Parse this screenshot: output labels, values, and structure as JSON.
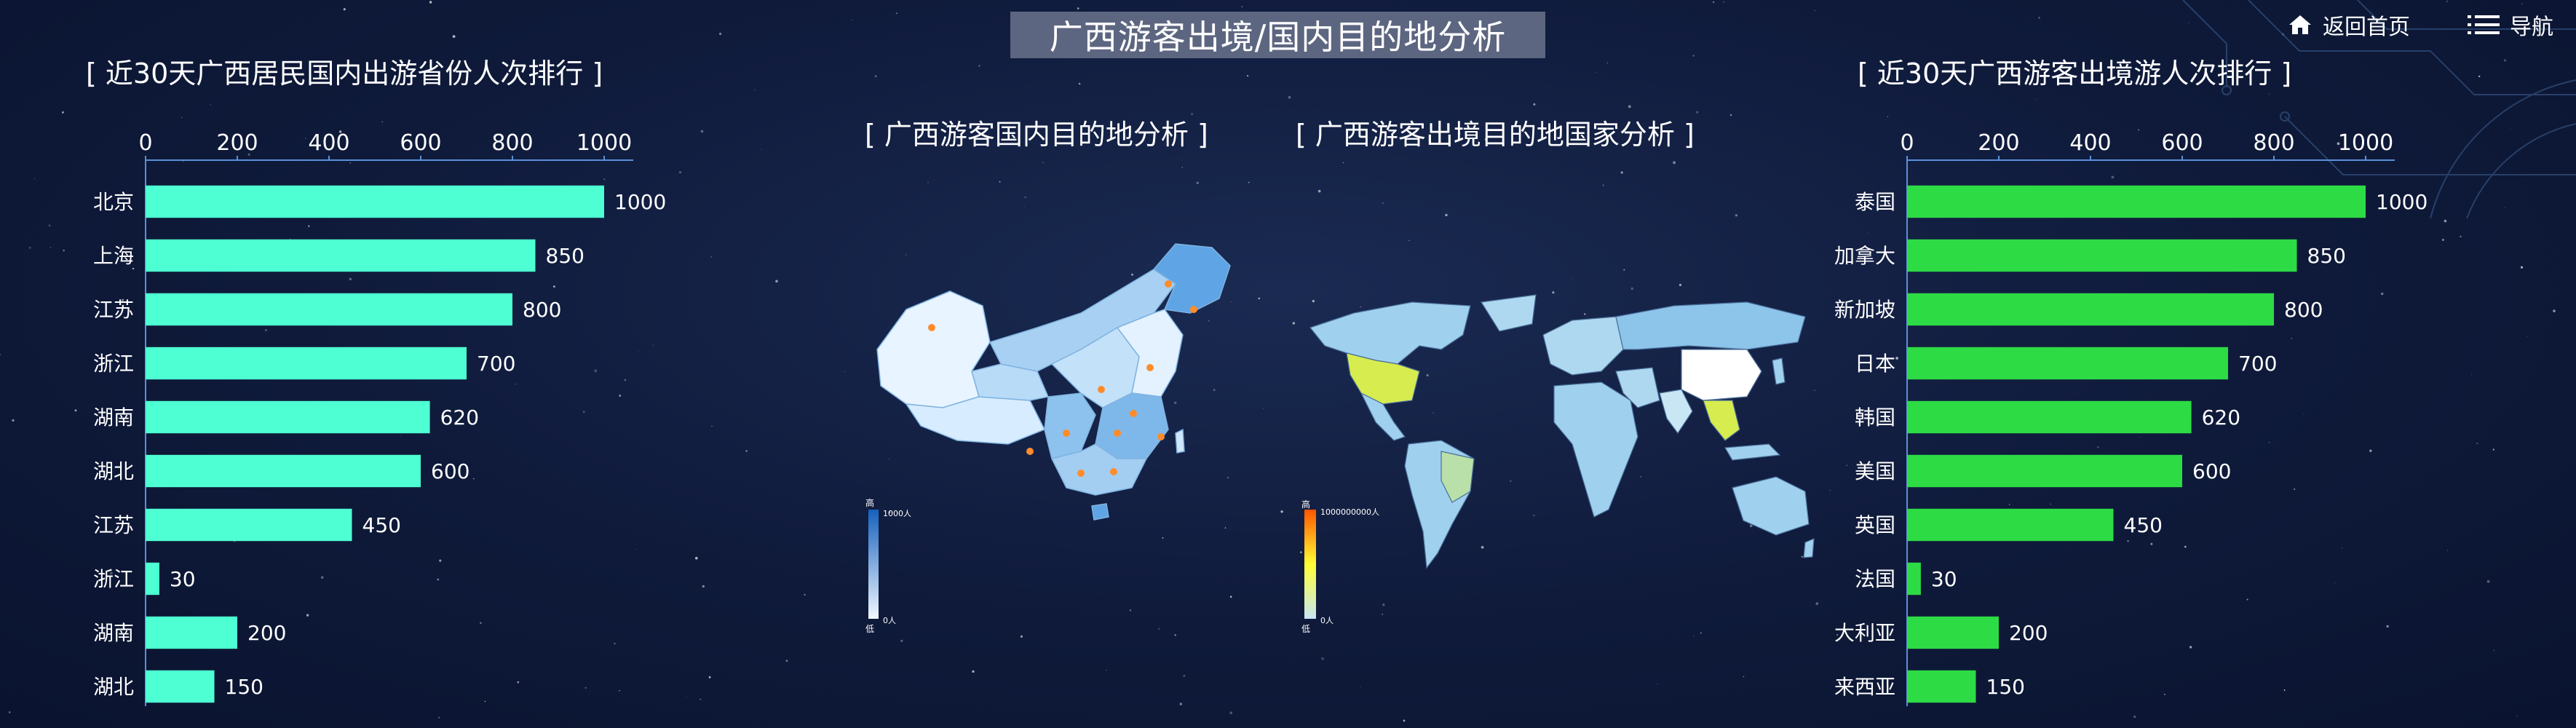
{
  "header": {
    "title": "广西游客出境/国内目的地分析",
    "home_label": "返回首页",
    "nav_label": "导航"
  },
  "panels": {
    "left_title": "[ 近30天广西居民国内出游省份人次排行 ]",
    "mid_left_title": "[ 广西游客国内目的地分析 ]",
    "mid_right_title": "[ 广西游客出境目的地国家分析 ]",
    "right_title": "[ 近30天广西游客出境游人次排行 ]"
  },
  "maps": {
    "china": {
      "legend_high": "高",
      "legend_low": "低",
      "legend_max": "1000人",
      "legend_min": "0人",
      "gradient": [
        "#f0f8ff",
        "#1560bd"
      ]
    },
    "world": {
      "legend_high": "高",
      "legend_low": "低",
      "legend_max": "1000000000人",
      "legend_min": "0人",
      "gradient": [
        "#c9e6f5",
        "#ffff33",
        "#ff5500"
      ]
    }
  },
  "chart_data": [
    {
      "type": "bar",
      "orientation": "horizontal",
      "categories": [
        "北京",
        "上海",
        "江苏",
        "浙江",
        "湖南",
        "湖北",
        "江苏",
        "浙江",
        "湖南",
        "湖北"
      ],
      "values": [
        1000,
        850,
        800,
        700,
        620,
        600,
        450,
        30,
        200,
        150
      ],
      "xlim": [
        0,
        1000
      ],
      "ticks": [
        0,
        200,
        400,
        600,
        800,
        1000
      ],
      "color": "#4dffd2"
    },
    {
      "type": "bar",
      "orientation": "horizontal",
      "categories": [
        "泰国",
        "加拿大",
        "新加坡",
        "日本",
        "韩国",
        "美国",
        "英国",
        "法国",
        "澳大利亚",
        "马来西亚"
      ],
      "values": [
        1000,
        850,
        800,
        700,
        620,
        600,
        450,
        30,
        200,
        150
      ],
      "xlim": [
        0,
        1000
      ],
      "ticks": [
        0,
        200,
        400,
        600,
        800,
        1000
      ],
      "color": "#2ddb45"
    }
  ]
}
